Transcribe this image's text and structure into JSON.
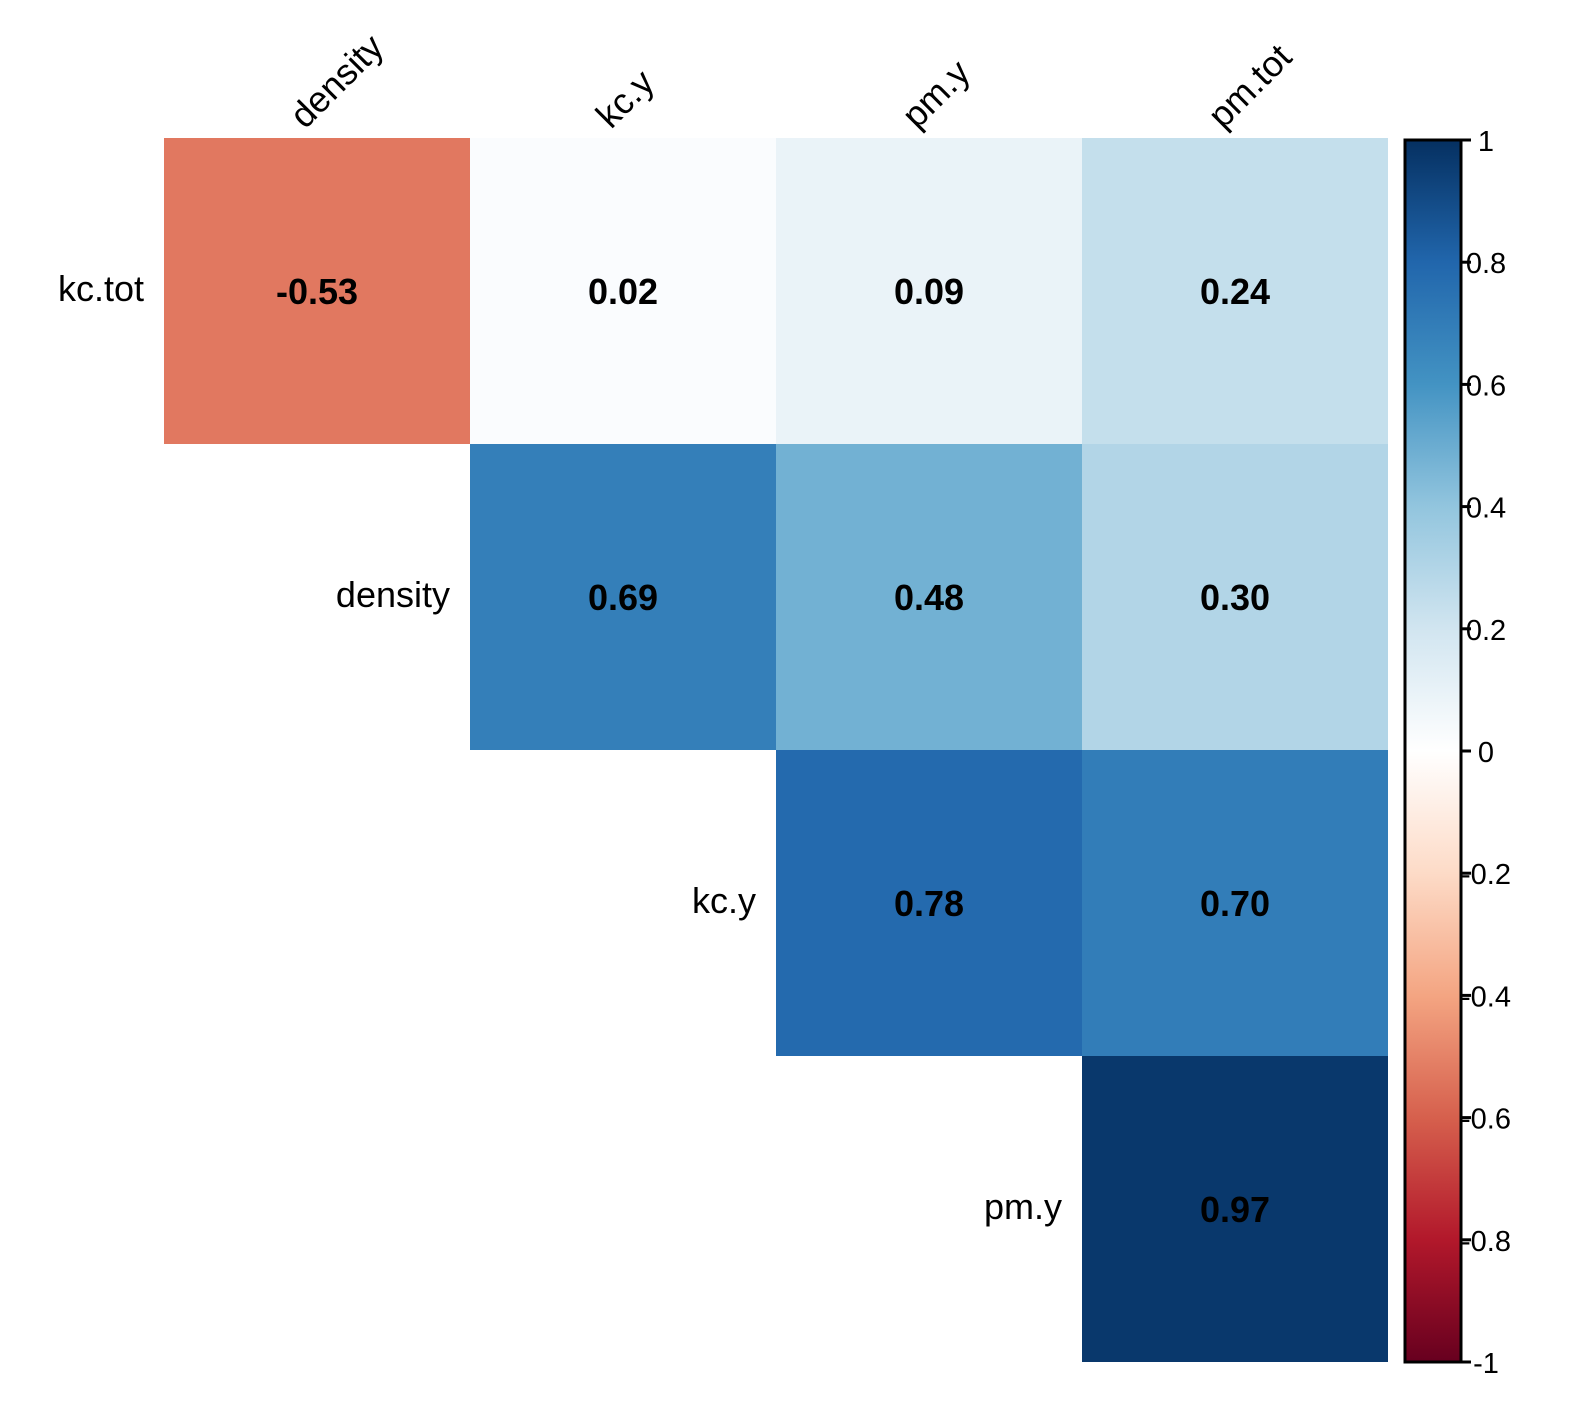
{
  "chart_data": {
    "type": "heatmap",
    "title": "",
    "subtitle": "",
    "description": "Upper-triangle correlation matrix (corrplot style, method = color, with coefficient labels)",
    "column_labels": [
      "density",
      "kc.y",
      "pm.y",
      "pm.tot"
    ],
    "row_labels": [
      "kc.tot",
      "density",
      "kc.y",
      "pm.y"
    ],
    "matrix": [
      [
        -0.53,
        0.02,
        0.09,
        0.24
      ],
      [
        null,
        0.69,
        0.48,
        0.3
      ],
      [
        null,
        null,
        0.78,
        0.7
      ],
      [
        null,
        null,
        null,
        0.97
      ]
    ],
    "value_labels": [
      [
        "-0.53",
        "0.02",
        "0.09",
        "0.24"
      ],
      [
        null,
        "0.69",
        "0.48",
        "0.30"
      ],
      [
        null,
        null,
        "0.78",
        "0.70"
      ],
      [
        null,
        null,
        null,
        "0.97"
      ]
    ],
    "colorbar": {
      "range": [
        -1,
        1
      ],
      "ticks": [
        1,
        0.8,
        0.6,
        0.4,
        0.2,
        0,
        -0.2,
        -0.4,
        -0.6,
        -0.8,
        -1
      ],
      "tick_labels": [
        "1",
        "0.8",
        "0.6",
        "0.4",
        "0.2",
        "0",
        "-0.2",
        "-0.4",
        "-0.6",
        "-0.8",
        "-1"
      ],
      "placement": "right",
      "palette_stops": [
        "#67001F",
        "#B2182B",
        "#D6604D",
        "#F4A582",
        "#FDDBC7",
        "#FFFFFF",
        "#D1E5F0",
        "#92C5DE",
        "#4393C3",
        "#2166AC",
        "#053061"
      ]
    },
    "grid": false,
    "xlabel": "",
    "ylabel": ""
  }
}
